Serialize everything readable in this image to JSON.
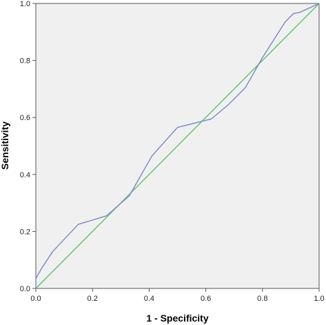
{
  "chart_data": {
    "type": "line",
    "title": "",
    "xlabel": "1 - Specificity",
    "ylabel": "Sensitivity",
    "xlim": [
      0,
      1
    ],
    "ylim": [
      0,
      1
    ],
    "x_ticks": [
      "0.0",
      "0.2",
      "0.4",
      "0.6",
      "0.8",
      "1.0"
    ],
    "y_ticks": [
      "0.0",
      "0.2",
      "0.4",
      "0.6",
      "0.8",
      "1.0"
    ],
    "grid": false,
    "legend": "none",
    "background_color": "#f0f0f0",
    "series": [
      {
        "color": "#7b86c7",
        "x": [
          0.0,
          0.0,
          0.02,
          0.06,
          0.15,
          0.25,
          0.33,
          0.41,
          0.5,
          0.62,
          0.68,
          0.74,
          0.8,
          0.88,
          0.91,
          0.93,
          1.0
        ],
        "y": [
          0.0,
          0.035,
          0.07,
          0.13,
          0.225,
          0.255,
          0.325,
          0.465,
          0.565,
          0.595,
          0.645,
          0.705,
          0.81,
          0.935,
          0.965,
          0.968,
          1.0
        ]
      },
      {
        "color": "#5fc06b",
        "x": [
          0.0,
          1.0
        ],
        "y": [
          0.0,
          1.0
        ]
      }
    ]
  }
}
